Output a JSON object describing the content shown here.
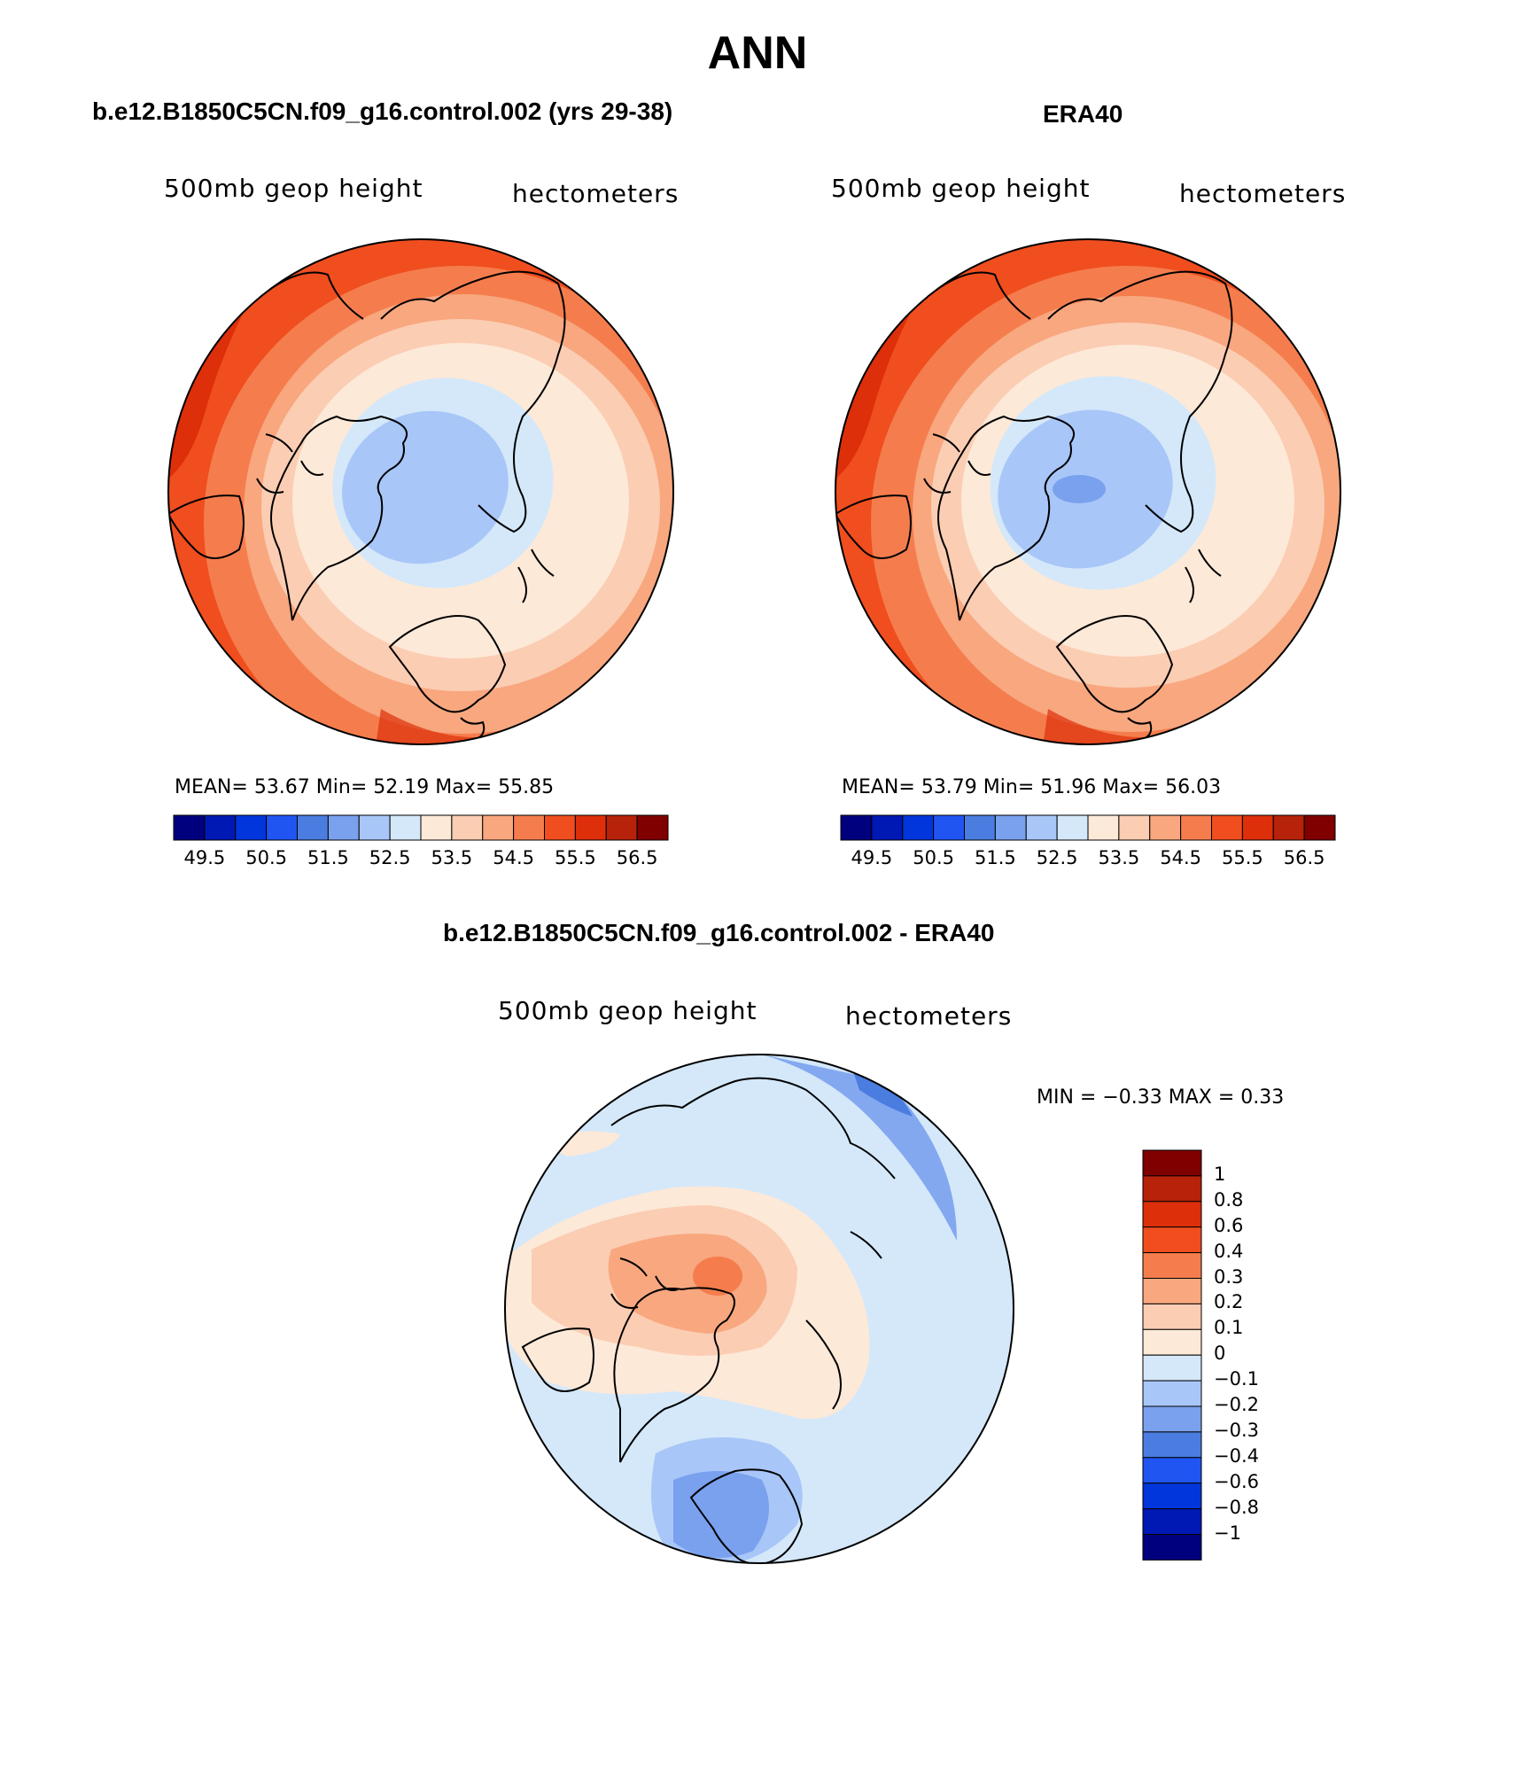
{
  "page": {
    "title": "ANN",
    "diff_title": "b.e12.B1850C5CN.f09_g16.control.002 - ERA40"
  },
  "panels": [
    {
      "subtitle": "b.e12.B1850C5CN.f09_g16.control.002 (yrs 29-38)",
      "left_label": "500mb geop height",
      "right_label": "hectometers",
      "stats": "MEAN=   53.67   Min=   52.19   Max=   55.85"
    },
    {
      "subtitle": "ERA40",
      "left_label": "500mb geop height",
      "right_label": "hectometers",
      "stats": "MEAN=   53.79   Min=   51.96   Max=   56.03"
    },
    {
      "left_label": "500mb geop height",
      "right_label": "hectometers",
      "stats": "MIN =   −0.33  MAX =     0.33"
    }
  ],
  "colorbars": {
    "abs": {
      "colors": [
        "#00007f",
        "#0018b4",
        "#0036dc",
        "#2055f2",
        "#4b7de0",
        "#7aa1ee",
        "#a8c6f7",
        "#d4e8fa",
        "#fde9d8",
        "#fbcdb3",
        "#f8a77f",
        "#f57d4d",
        "#f04e1f",
        "#dd2f0a",
        "#b7220a",
        "#800000"
      ],
      "labels": [
        "49.5",
        "50.5",
        "51.5",
        "52.5",
        "53.5",
        "54.5",
        "55.5",
        "56.5"
      ]
    },
    "diff": {
      "colors": [
        "#800000",
        "#b7220a",
        "#dd2f0a",
        "#f04e1f",
        "#f57d4d",
        "#f8a77f",
        "#fbcdb3",
        "#fde9d8",
        "#d4e8fa",
        "#a8c6f7",
        "#7aa1ee",
        "#4b7de0",
        "#2055f2",
        "#0036dc",
        "#0018b4",
        "#00007f"
      ],
      "labels": [
        "1",
        "0.8",
        "0.6",
        "0.4",
        "0.3",
        "0.2",
        "0.1",
        "0",
        "−0.1",
        "−0.2",
        "−0.3",
        "−0.4",
        "−0.6",
        "−0.8",
        "−1"
      ]
    }
  }
}
